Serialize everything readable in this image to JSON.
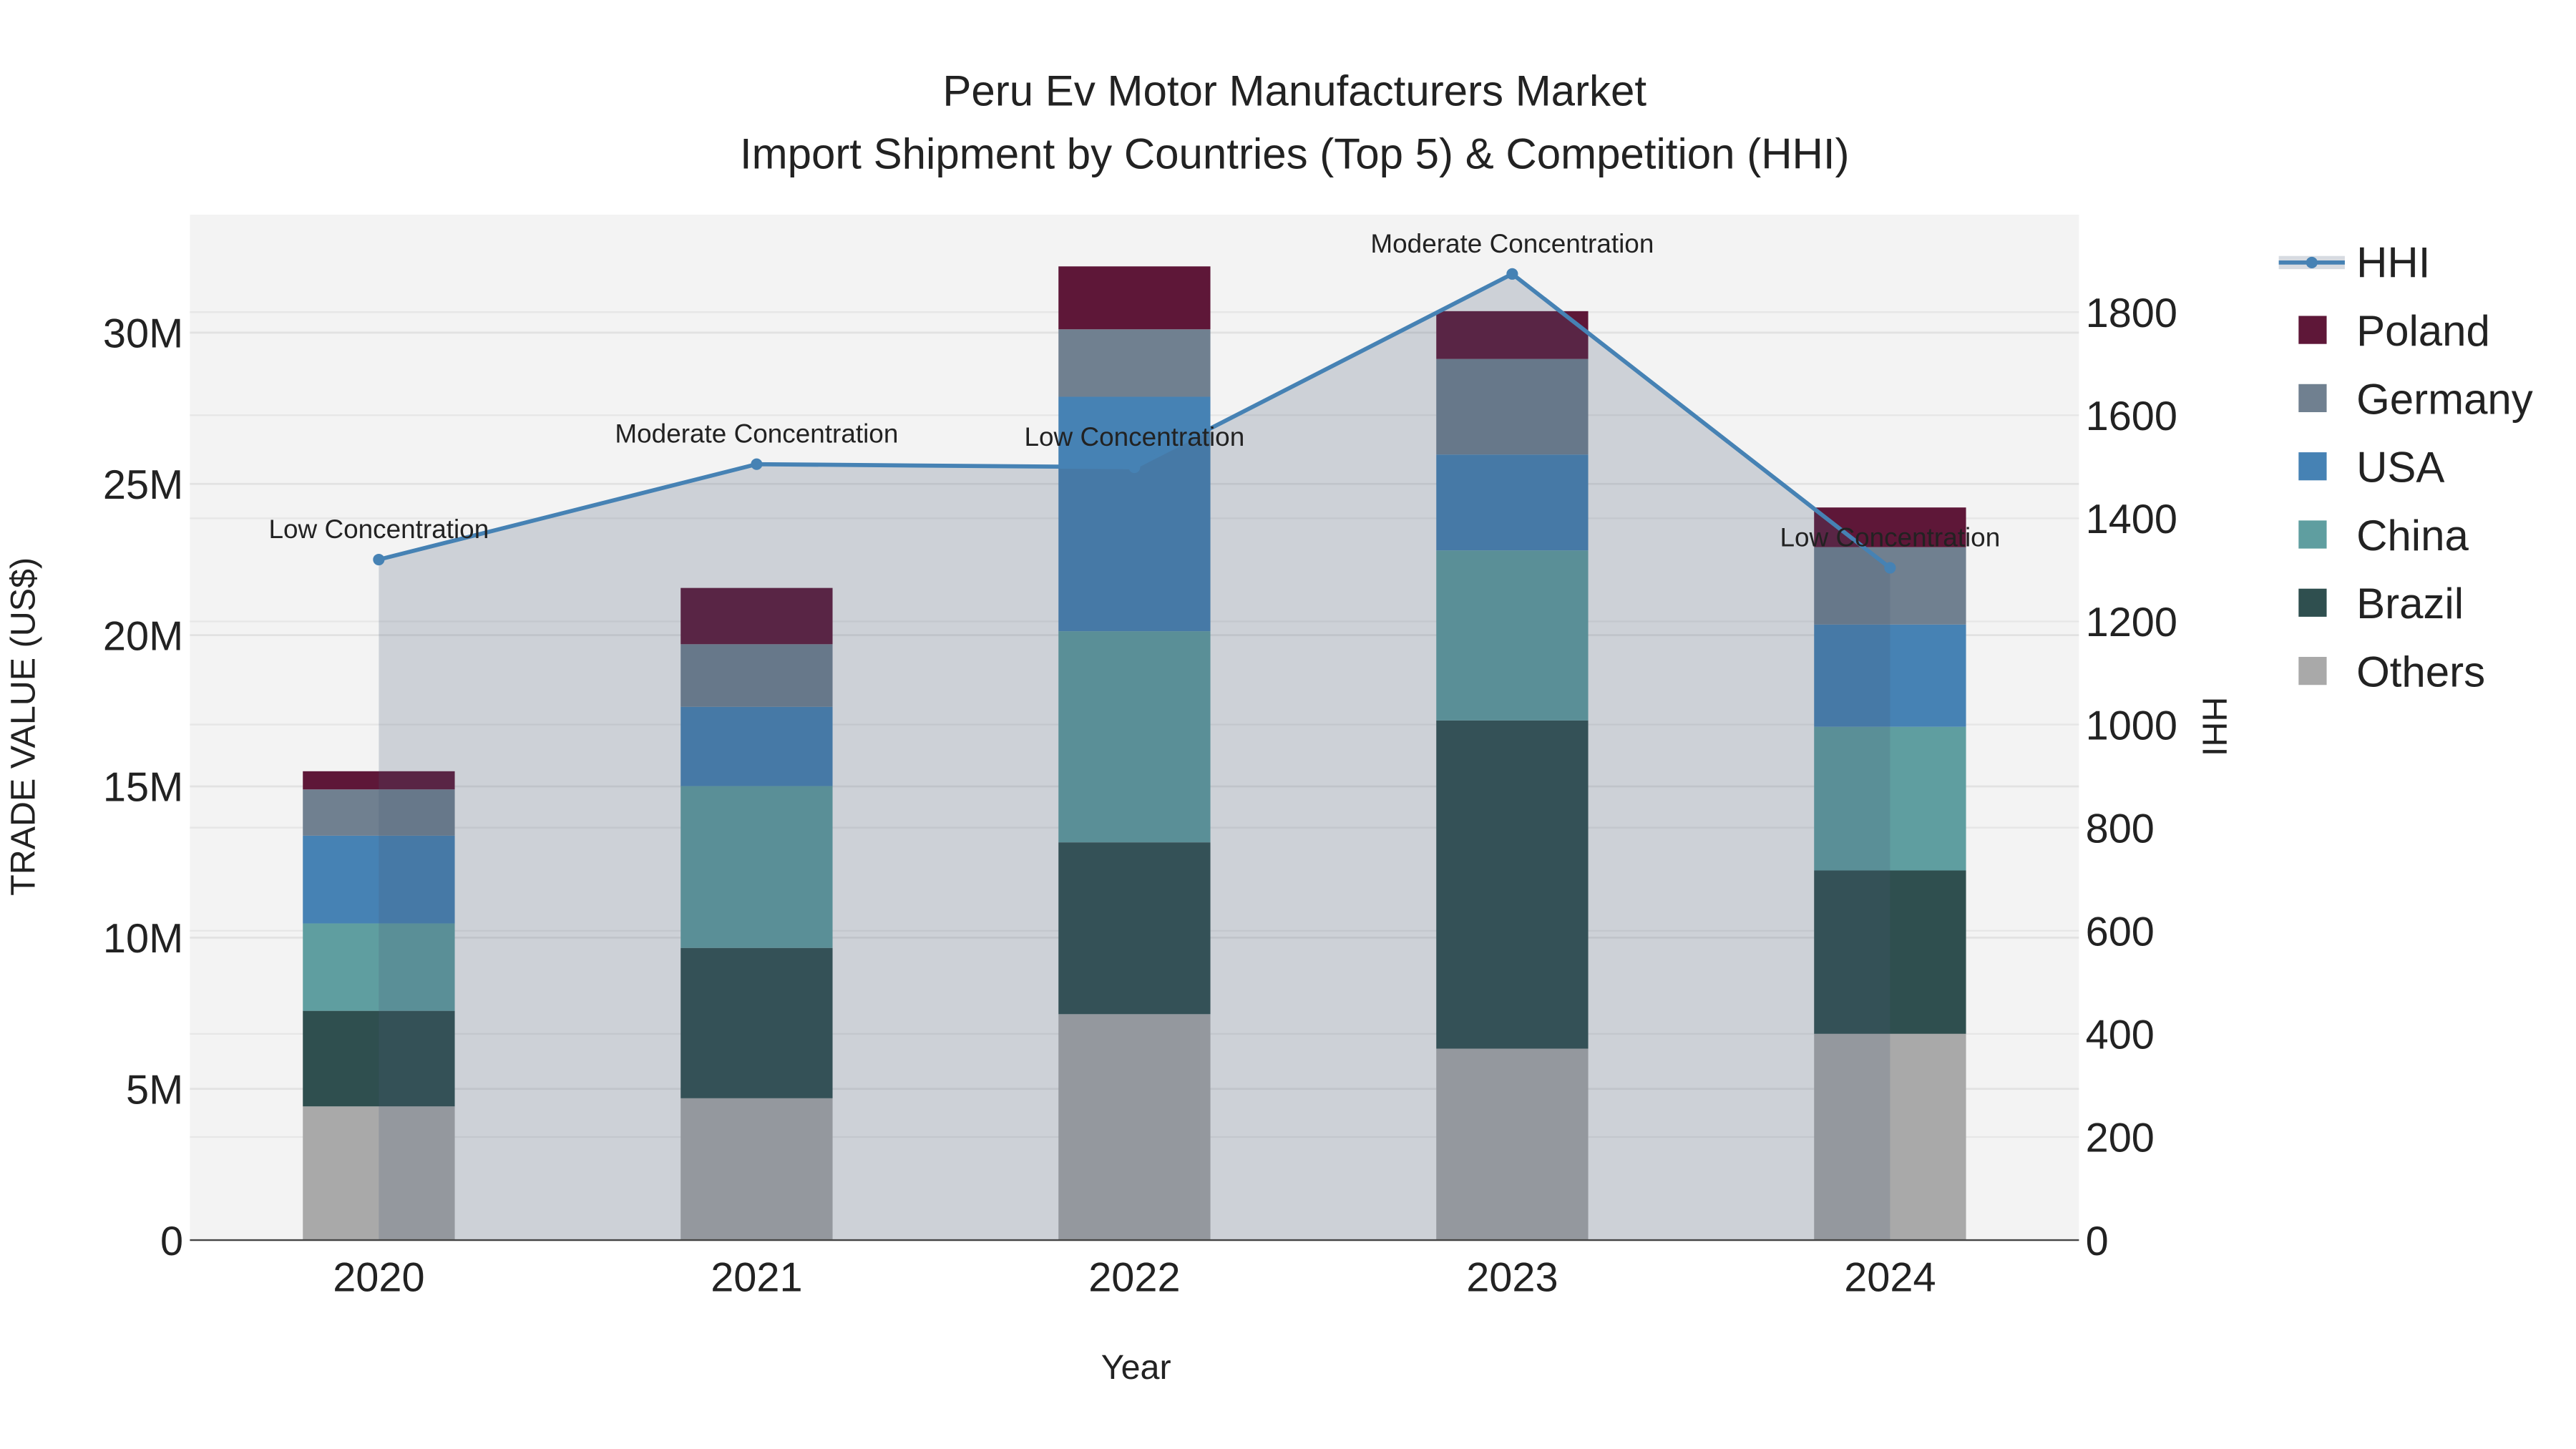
{
  "chart_data": {
    "type": "bar",
    "title": "Peru Ev Motor Manufacturers Market",
    "subtitle": "Import Shipment by Countries (Top 5) & Competition (HHI)",
    "xlabel": "Year",
    "ylabel": "TRADE VALUE (US$)",
    "y2label": "HHI",
    "categories": [
      "2020",
      "2021",
      "2022",
      "2023",
      "2024"
    ],
    "ylim": [
      0,
      33.9
    ],
    "y_unit": "M",
    "yticks": [
      0,
      5,
      10,
      15,
      20,
      25,
      30
    ],
    "ytick_labels": [
      "0",
      "5M",
      "10M",
      "15M",
      "20M",
      "25M",
      "30M"
    ],
    "y2lim": [
      0,
      1989
    ],
    "y2ticks": [
      0,
      200,
      400,
      600,
      800,
      1000,
      1200,
      1400,
      1600,
      1800
    ],
    "y2tick_labels": [
      "0",
      "200",
      "400",
      "600",
      "800",
      "1000",
      "1200",
      "1400",
      "1600",
      "1800"
    ],
    "series": [
      {
        "name": "Others",
        "color": "#a9a9a9",
        "values": [
          4.42,
          4.69,
          7.47,
          6.33,
          6.82
        ]
      },
      {
        "name": "Brazil",
        "color": "#2f4f4f",
        "values": [
          3.16,
          4.97,
          5.68,
          10.85,
          5.4
        ]
      },
      {
        "name": "China",
        "color": "#5f9ea0",
        "values": [
          2.89,
          5.35,
          6.98,
          5.62,
          4.75
        ]
      },
      {
        "name": "USA",
        "color": "#4682b4",
        "values": [
          2.9,
          2.62,
          7.75,
          3.17,
          3.38
        ]
      },
      {
        "name": "Germany",
        "color": "#708090",
        "values": [
          1.53,
          2.07,
          2.23,
          3.16,
          2.56
        ]
      },
      {
        "name": "Poland",
        "color": "#5e1738",
        "values": [
          0.6,
          1.86,
          2.08,
          1.58,
          1.31
        ]
      }
    ],
    "hhi": {
      "name": "HHI",
      "color": "#4682b4",
      "values": [
        1320,
        1505,
        1499,
        1874,
        1304
      ],
      "annotations": [
        "Low Concentration",
        "Moderate Concentration",
        "Low Concentration",
        "Moderate Concentration",
        "Low Concentration"
      ]
    },
    "legend_order": [
      "HHI",
      "Poland",
      "Germany",
      "USA",
      "China",
      "Brazil",
      "Others"
    ],
    "legend_position": "right",
    "grid": true
  }
}
